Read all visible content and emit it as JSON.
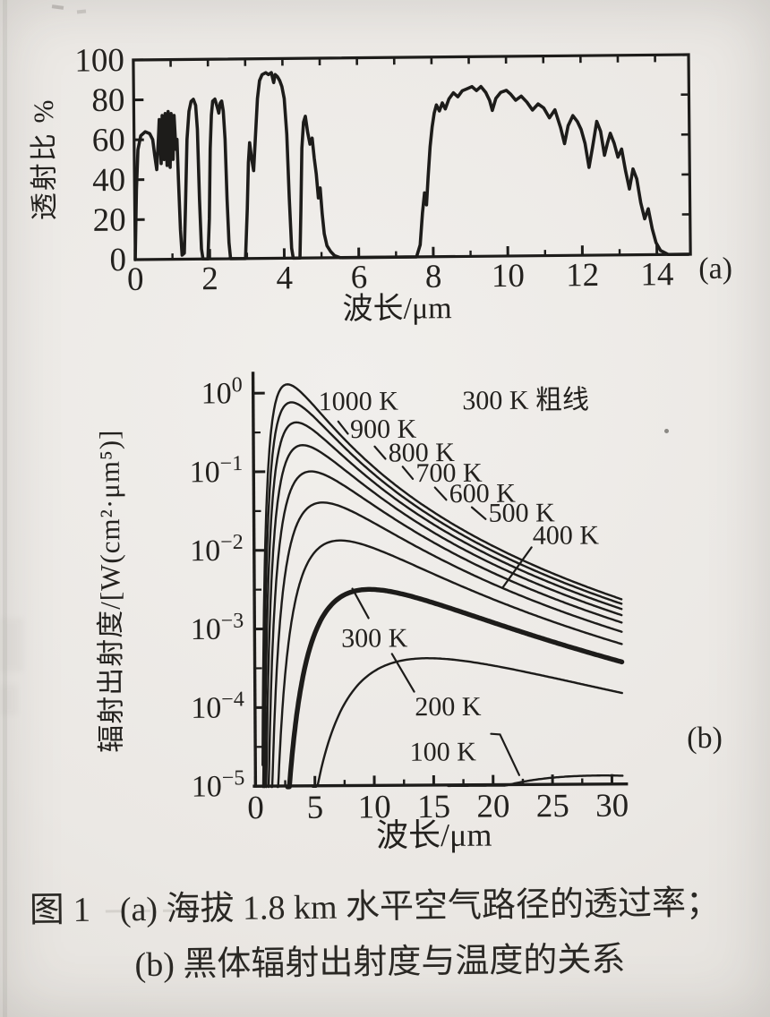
{
  "page": {
    "caption": {
      "figure_label": "图 1",
      "line_a": "(a) 海拔 1.8 km 水平空气路径的透过率；",
      "line_b": "(b) 黑体辐射出射度与温度的关系"
    }
  },
  "chart_data": [
    {
      "id": "atmospheric-transmittance",
      "type": "line",
      "panel_label": "(a)",
      "xlabel": "波长/μm",
      "ylabel": "透射比 %",
      "xlim": [
        0,
        14.9
      ],
      "ylim": [
        0,
        100
      ],
      "x_major_ticks": [
        0,
        2,
        4,
        6,
        8,
        10,
        12,
        14
      ],
      "x_minor_ticks": [
        1,
        3,
        5,
        7,
        9,
        11,
        13
      ],
      "y_major_ticks": [
        0,
        20,
        40,
        60,
        80,
        100
      ],
      "grid": false,
      "points": [
        [
          0.0,
          0
        ],
        [
          0.05,
          35
        ],
        [
          0.1,
          55
        ],
        [
          0.18,
          62
        ],
        [
          0.3,
          64
        ],
        [
          0.42,
          63
        ],
        [
          0.5,
          60
        ],
        [
          0.55,
          52
        ],
        [
          0.6,
          45
        ],
        [
          0.65,
          60
        ],
        [
          0.68,
          70
        ],
        [
          0.72,
          48
        ],
        [
          0.76,
          72
        ],
        [
          0.8,
          50
        ],
        [
          0.84,
          73
        ],
        [
          0.88,
          47
        ],
        [
          0.92,
          74
        ],
        [
          0.96,
          46
        ],
        [
          1.0,
          73
        ],
        [
          1.04,
          50
        ],
        [
          1.08,
          72
        ],
        [
          1.12,
          55
        ],
        [
          1.15,
          60
        ],
        [
          1.18,
          40
        ],
        [
          1.22,
          15
        ],
        [
          1.26,
          2
        ],
        [
          1.32,
          3
        ],
        [
          1.36,
          25
        ],
        [
          1.42,
          60
        ],
        [
          1.48,
          74
        ],
        [
          1.54,
          79
        ],
        [
          1.6,
          80
        ],
        [
          1.66,
          77
        ],
        [
          1.7,
          65
        ],
        [
          1.74,
          30
        ],
        [
          1.78,
          5
        ],
        [
          1.82,
          0
        ],
        [
          1.95,
          0
        ],
        [
          2.0,
          20
        ],
        [
          2.04,
          55
        ],
        [
          2.08,
          72
        ],
        [
          2.12,
          79
        ],
        [
          2.18,
          80
        ],
        [
          2.24,
          76
        ],
        [
          2.28,
          73
        ],
        [
          2.32,
          78
        ],
        [
          2.36,
          79
        ],
        [
          2.4,
          74
        ],
        [
          2.44,
          60
        ],
        [
          2.48,
          30
        ],
        [
          2.52,
          8
        ],
        [
          2.56,
          0
        ],
        [
          2.96,
          0
        ],
        [
          3.02,
          25
        ],
        [
          3.06,
          48
        ],
        [
          3.1,
          58
        ],
        [
          3.15,
          50
        ],
        [
          3.2,
          44
        ],
        [
          3.26,
          62
        ],
        [
          3.32,
          80
        ],
        [
          3.38,
          89
        ],
        [
          3.45,
          92
        ],
        [
          3.55,
          93
        ],
        [
          3.62,
          92
        ],
        [
          3.7,
          93
        ],
        [
          3.76,
          88
        ],
        [
          3.8,
          92
        ],
        [
          3.86,
          91
        ],
        [
          3.92,
          89
        ],
        [
          3.98,
          86
        ],
        [
          4.04,
          80
        ],
        [
          4.1,
          62
        ],
        [
          4.15,
          30
        ],
        [
          4.2,
          5
        ],
        [
          4.24,
          0
        ],
        [
          4.42,
          0
        ],
        [
          4.46,
          25
        ],
        [
          4.5,
          55
        ],
        [
          4.55,
          68
        ],
        [
          4.6,
          71
        ],
        [
          4.66,
          63
        ],
        [
          4.72,
          57
        ],
        [
          4.78,
          60
        ],
        [
          4.83,
          50
        ],
        [
          4.88,
          42
        ],
        [
          4.93,
          30
        ],
        [
          4.98,
          35
        ],
        [
          5.03,
          22
        ],
        [
          5.08,
          12
        ],
        [
          5.15,
          6
        ],
        [
          5.25,
          3
        ],
        [
          5.35,
          1
        ],
        [
          5.5,
          0
        ],
        [
          7.55,
          0
        ],
        [
          7.65,
          6
        ],
        [
          7.72,
          22
        ],
        [
          7.78,
          32
        ],
        [
          7.83,
          26
        ],
        [
          7.88,
          40
        ],
        [
          7.94,
          55
        ],
        [
          8.0,
          65
        ],
        [
          8.06,
          72
        ],
        [
          8.12,
          76
        ],
        [
          8.2,
          73
        ],
        [
          8.28,
          77
        ],
        [
          8.36,
          74
        ],
        [
          8.46,
          79
        ],
        [
          8.58,
          82
        ],
        [
          8.7,
          80
        ],
        [
          8.82,
          83
        ],
        [
          8.95,
          84
        ],
        [
          9.08,
          85
        ],
        [
          9.2,
          83
        ],
        [
          9.32,
          85
        ],
        [
          9.45,
          82
        ],
        [
          9.55,
          78
        ],
        [
          9.62,
          73
        ],
        [
          9.72,
          79
        ],
        [
          9.85,
          82
        ],
        [
          10.0,
          83
        ],
        [
          10.12,
          81
        ],
        [
          10.25,
          78
        ],
        [
          10.4,
          80
        ],
        [
          10.55,
          77
        ],
        [
          10.7,
          73
        ],
        [
          10.85,
          76
        ],
        [
          11.0,
          74
        ],
        [
          11.15,
          69
        ],
        [
          11.3,
          73
        ],
        [
          11.45,
          64
        ],
        [
          11.55,
          56
        ],
        [
          11.65,
          65
        ],
        [
          11.78,
          70
        ],
        [
          11.9,
          67
        ],
        [
          12.0,
          63
        ],
        [
          12.1,
          56
        ],
        [
          12.2,
          44
        ],
        [
          12.3,
          54
        ],
        [
          12.42,
          67
        ],
        [
          12.52,
          62
        ],
        [
          12.62,
          50
        ],
        [
          12.7,
          56
        ],
        [
          12.78,
          61
        ],
        [
          12.88,
          56
        ],
        [
          12.98,
          49
        ],
        [
          13.08,
          53
        ],
        [
          13.18,
          42
        ],
        [
          13.28,
          33
        ],
        [
          13.38,
          43
        ],
        [
          13.48,
          38
        ],
        [
          13.58,
          26
        ],
        [
          13.68,
          18
        ],
        [
          13.78,
          23
        ],
        [
          13.88,
          13
        ],
        [
          13.98,
          6
        ],
        [
          14.1,
          2
        ],
        [
          14.3,
          0
        ],
        [
          14.85,
          0
        ]
      ]
    },
    {
      "id": "blackbody-exitance",
      "type": "line",
      "panel_label": "(b)",
      "xlabel": "波长/μm",
      "ylabel": "辐射出射度/[W(cm²·μm⁵)]",
      "xlim": [
        0,
        30.9
      ],
      "y_log_exponent_range": [
        -5,
        0.25
      ],
      "x_major_ticks": [
        0,
        5,
        10,
        15,
        20,
        25,
        30
      ],
      "x_minor_ticks": [
        2.5,
        7.5,
        12.5,
        17.5,
        22.5,
        27.5
      ],
      "y_decade_ticks": [
        0,
        -1,
        -2,
        -3,
        -4,
        -5
      ],
      "grid": false,
      "temperatures_K": [
        100,
        200,
        300,
        400,
        500,
        600,
        700,
        800,
        900,
        1000
      ],
      "thick_temperature_K": 300,
      "planck_constants": {
        "c1": 37418,
        "c2": 14388
      },
      "annotations": [
        {
          "text": "1000 K",
          "x": 5.5,
          "y": 0.6
        },
        {
          "text": "300 K 粗线",
          "x": 17.6,
          "y": 0.6
        },
        {
          "text": "900 K",
          "x": 8.15,
          "y": 0.265,
          "leader": [
            [
              7.15,
              0.43
            ],
            [
              7.95,
              0.3
            ]
          ]
        },
        {
          "text": "800 K",
          "x": 11.35,
          "y": 0.132,
          "leader": [
            [
              10.2,
              0.205
            ],
            [
              11.1,
              0.143
            ]
          ]
        },
        {
          "text": "700 K",
          "x": 13.65,
          "y": 0.0725,
          "leader": [
            [
              12.55,
              0.113
            ],
            [
              13.4,
              0.079
            ]
          ]
        },
        {
          "text": "600 K",
          "x": 16.45,
          "y": 0.0395,
          "leader": [
            [
              15.25,
              0.061
            ],
            [
              16.2,
              0.0425
            ]
          ]
        },
        {
          "text": "500 K",
          "x": 19.75,
          "y": 0.0222,
          "leader": [
            [
              18.35,
              0.034
            ],
            [
              19.5,
              0.024
            ]
          ]
        },
        {
          "text": "400 K",
          "x": 23.45,
          "y": 0.0114,
          "leader": [
            [
              20.9,
              0.0032
            ],
            [
              23.35,
              0.0104
            ]
          ]
        },
        {
          "text": "300 K",
          "x": 7.3,
          "y": 0.00058,
          "leader": [
            [
              8.25,
              0.0032
            ],
            [
              9.6,
              0.00135
            ]
          ]
        },
        {
          "text": "200 K",
          "x": 13.45,
          "y": 7.7e-05,
          "leader": [
            [
              11.55,
              0.00047
            ],
            [
              13.4,
              0.000155
            ]
          ]
        },
        {
          "text": "100 K",
          "x": 13.0,
          "y": 2.05e-05,
          "leader": [
            [
              19.85,
              4.45e-05
            ],
            [
              20.6,
              4.35e-05
            ],
            [
              22.2,
              1.32e-05
            ]
          ]
        }
      ]
    }
  ]
}
